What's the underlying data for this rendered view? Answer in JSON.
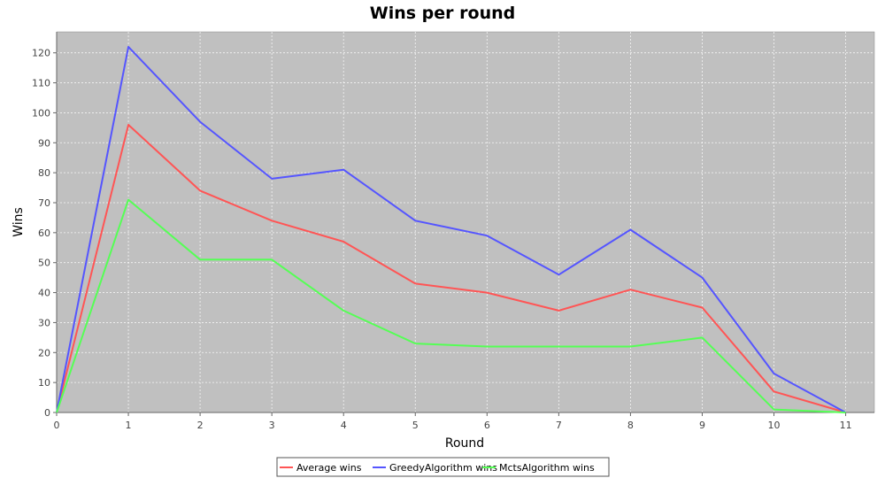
{
  "chart_data": {
    "type": "line",
    "title": "Wins per round",
    "xlabel": "Round",
    "ylabel": "Wins",
    "xlim": [
      0,
      11.4
    ],
    "ylim": [
      0,
      127
    ],
    "x_ticks": [
      0,
      1,
      2,
      3,
      4,
      5,
      6,
      7,
      8,
      9,
      10,
      11
    ],
    "y_ticks": [
      0,
      10,
      20,
      30,
      40,
      50,
      60,
      70,
      80,
      90,
      100,
      110,
      120
    ],
    "grid": true,
    "legend_position": "bottom",
    "x": [
      0,
      1,
      2,
      3,
      4,
      5,
      6,
      7,
      8,
      9,
      10,
      11
    ],
    "series": [
      {
        "name": "Average wins",
        "color": "#ff5555",
        "values": [
          0,
          96,
          74,
          64,
          57,
          43,
          40,
          34,
          41,
          35,
          7,
          0
        ]
      },
      {
        "name": "GreedyAlgorithm wins",
        "color": "#5555ff",
        "values": [
          0,
          122,
          97,
          78,
          81,
          64,
          59,
          46,
          61,
          45,
          13,
          0
        ]
      },
      {
        "name": "MctsAlgorithm wins",
        "color": "#55ff55",
        "values": [
          0,
          71,
          51,
          51,
          34,
          23,
          22,
          22,
          22,
          25,
          1,
          0
        ]
      }
    ]
  },
  "colors": {
    "plot_background": "#c0c0c0",
    "page_background": "#ffffff"
  }
}
